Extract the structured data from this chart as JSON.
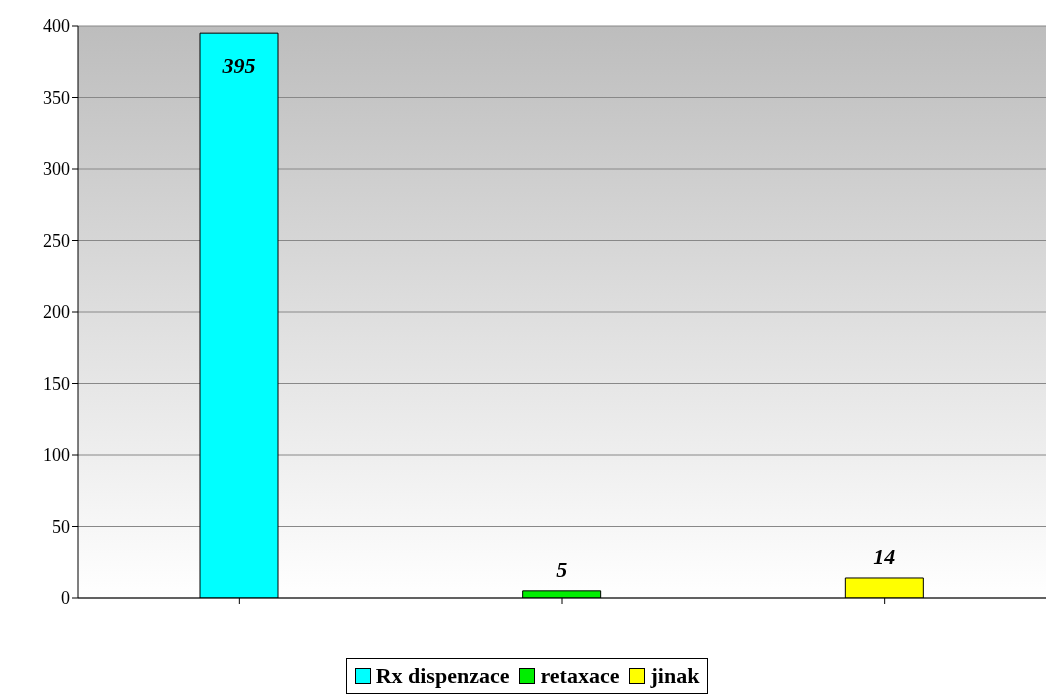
{
  "chart_data": {
    "type": "bar",
    "categories": [
      null,
      null,
      null
    ],
    "stacked": true,
    "series": [
      {
        "name": "Rx dispenzace",
        "color": "#00ffff",
        "values": [
          395,
          null,
          null
        ]
      },
      {
        "name": "retaxace",
        "color": "#00ee00",
        "values": [
          null,
          5,
          null
        ]
      },
      {
        "name": "jinak",
        "color": "#ffff00",
        "values": [
          null,
          null,
          14
        ]
      }
    ],
    "ylim": [
      0,
      400
    ],
    "yticks": [
      0,
      50,
      100,
      150,
      200,
      250,
      300,
      350,
      400
    ],
    "grid": "y",
    "legend": "bottom",
    "data_labels": true
  }
}
